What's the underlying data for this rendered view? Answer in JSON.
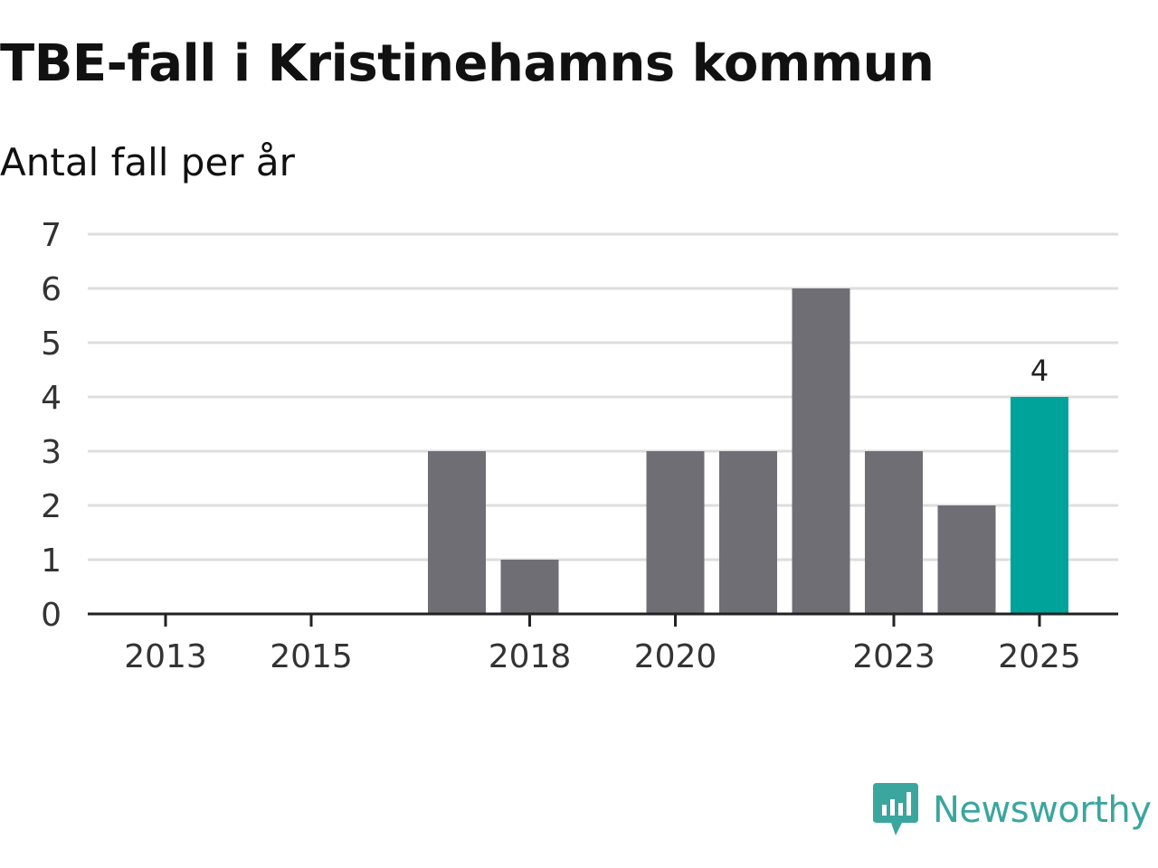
{
  "title": "TBE-fall i Kristinehamns kommun",
  "subtitle": "Antal fall per år",
  "brand": "Newsworthy",
  "colors": {
    "bar": "#6f6e74",
    "highlight": "#00a39a",
    "grid": "#dedede",
    "axis": "#222222",
    "brand": "#3aa69e"
  },
  "chart_data": {
    "type": "bar",
    "categories": [
      "2013",
      "2014",
      "2015",
      "2016",
      "2017",
      "2018",
      "2019",
      "2020",
      "2021",
      "2022",
      "2023",
      "2024",
      "2025"
    ],
    "values": [
      0,
      0,
      0,
      0,
      3,
      1,
      0,
      3,
      3,
      6,
      3,
      2,
      4
    ],
    "x_tick_labels": [
      "2013",
      "2015",
      "2018",
      "2020",
      "2023",
      "2025"
    ],
    "y_ticks": [
      0,
      1,
      2,
      3,
      4,
      5,
      6,
      7
    ],
    "ylim": [
      0,
      7
    ],
    "highlight": "2025",
    "data_labels": [
      {
        "category": "2025",
        "text": "4"
      }
    ],
    "grid": true,
    "xlabel": "",
    "ylabel": ""
  }
}
